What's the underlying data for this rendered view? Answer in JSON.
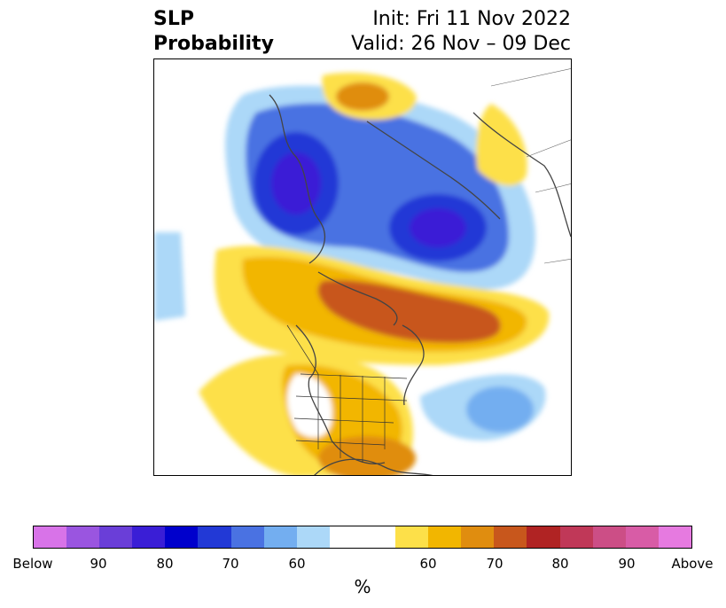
{
  "title": {
    "left_line1": "SLP",
    "left_line2": "Probability",
    "right_line1": "Init: Fri 11 Nov 2022",
    "right_line2": "Valid: 26 Nov – 09 Dec"
  },
  "colorbar": {
    "colors": [
      "#d873e8",
      "#9a55e0",
      "#6a3ed8",
      "#3a1ed6",
      "#0000cc",
      "#2239d6",
      "#4a72e2",
      "#73aef0",
      "#acd8f8",
      "#ffffff",
      "#ffffff",
      "#fde049",
      "#f2b600",
      "#e08d0f",
      "#c8571c",
      "#b02323",
      "#c03858",
      "#cc4e86",
      "#d85ca6",
      "#e67ae0"
    ],
    "labels": [
      "Below",
      "90",
      "80",
      "70",
      "60",
      "60",
      "70",
      "80",
      "90",
      "Above"
    ],
    "unit": "%"
  },
  "map": {
    "description_colors": {
      "below_strong": "#3a1ed6",
      "below_mid": "#4a72e2",
      "below_weak": "#acd8f8",
      "above_weak": "#fde049",
      "above_mid": "#f2b600",
      "above_strong": "#c8571c"
    }
  }
}
